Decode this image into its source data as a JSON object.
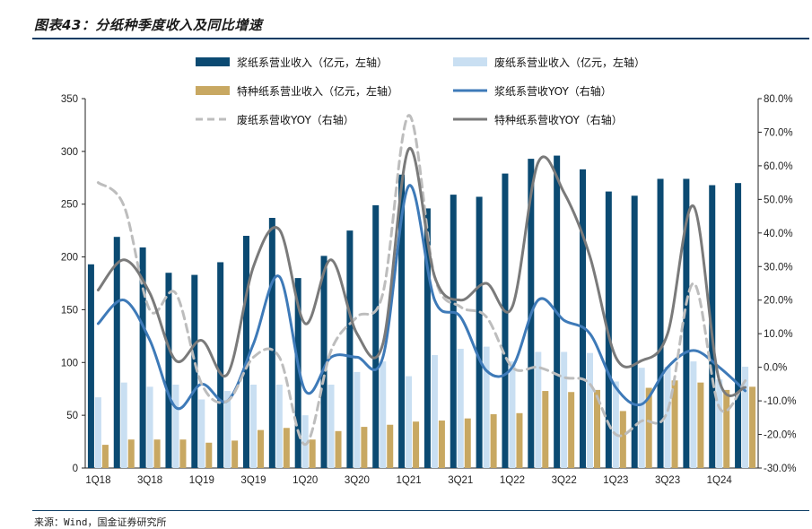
{
  "title": "图表43：分纸种季度收入及同比增速",
  "source": "来源：Wind，国金证券研究所",
  "colors": {
    "pulp_bar": "#0b4a72",
    "waste_bar": "#c9dff2",
    "special_bar": "#c8a862",
    "pulp_yoy": "#3e7ab8",
    "waste_yoy": "#bdbdbd",
    "special_yoy": "#7a7a7a"
  },
  "chart_data": {
    "type": "bar",
    "categories": [
      "1Q18",
      "2Q18",
      "3Q18",
      "4Q18",
      "1Q19",
      "2Q19",
      "3Q19",
      "4Q19",
      "1Q20",
      "2Q20",
      "3Q20",
      "4Q20",
      "1Q21",
      "2Q21",
      "3Q21",
      "4Q21",
      "1Q22",
      "2Q22",
      "3Q22",
      "4Q22",
      "1Q23",
      "2Q23",
      "3Q23",
      "4Q23",
      "1Q24",
      "2Q24"
    ],
    "x_tick_labels": [
      "1Q18",
      "",
      "3Q18",
      "",
      "1Q19",
      "",
      "3Q19",
      "",
      "1Q20",
      "",
      "3Q20",
      "",
      "1Q21",
      "",
      "3Q21",
      "",
      "1Q22",
      "",
      "3Q22",
      "",
      "1Q23",
      "",
      "3Q23",
      "",
      "1Q24",
      ""
    ],
    "y_left": {
      "ylim": [
        0,
        350
      ],
      "ticks": [
        0,
        50,
        100,
        150,
        200,
        250,
        300,
        350
      ]
    },
    "y_right": {
      "ylim": [
        -30,
        80
      ],
      "ticks": [
        "-30.0%",
        "-20.0%",
        "-10.0%",
        "0.0%",
        "10.0%",
        "20.0%",
        "30.0%",
        "40.0%",
        "50.0%",
        "60.0%",
        "70.0%",
        "80.0%"
      ],
      "tick_values": [
        -30,
        -20,
        -10,
        0,
        10,
        20,
        30,
        40,
        50,
        60,
        70,
        80
      ]
    },
    "legend_placement": "top",
    "series": [
      {
        "name": "浆纸系营业收入（亿元，左轴）",
        "type": "bar",
        "axis": "left",
        "values": [
          193,
          219,
          209,
          185,
          183,
          195,
          220,
          237,
          180,
          201,
          225,
          249,
          278,
          246,
          259,
          257,
          279,
          293,
          296,
          283,
          262,
          258,
          274,
          274,
          268,
          270
        ]
      },
      {
        "name": "废纸系营业收入（亿元，左轴）",
        "type": "bar",
        "axis": "left",
        "values": [
          67,
          81,
          77,
          79,
          65,
          73,
          79,
          79,
          50,
          79,
          91,
          101,
          87,
          107,
          113,
          115,
          101,
          110,
          110,
          109,
          82,
          95,
          96,
          101,
          84,
          96
        ]
      },
      {
        "name": "特种纸系营业收入（亿元，左轴）",
        "type": "bar",
        "axis": "left",
        "values": [
          22,
          27,
          27,
          27,
          24,
          26,
          36,
          38,
          27,
          35,
          39,
          41,
          44,
          45,
          47,
          51,
          52,
          73,
          72,
          74,
          54,
          76,
          83,
          81,
          74,
          77
        ]
      },
      {
        "name": "浆纸系营收YOY（右轴）",
        "type": "line",
        "axis": "right",
        "values": [
          13,
          20,
          8,
          -12,
          -5,
          -10,
          7,
          27,
          -7,
          3,
          3,
          3,
          54,
          20,
          15,
          -1,
          0,
          20,
          14,
          10,
          -6,
          -11,
          0,
          5,
          0,
          -7
        ]
      },
      {
        "name": "废纸系营收YOY（右轴）",
        "type": "line",
        "axis": "right",
        "values": [
          55,
          48,
          17,
          22,
          -5,
          -10,
          3,
          3,
          -23,
          5,
          15,
          22,
          75,
          27,
          18,
          15,
          0,
          0,
          -3,
          -5,
          -20,
          -16,
          -13,
          25,
          -12,
          -4
        ]
      },
      {
        "name": "特种纸系营收YOY（右轴）",
        "type": "line",
        "axis": "right",
        "values": [
          23,
          32,
          22,
          2,
          8,
          -2,
          30,
          41,
          13,
          32,
          10,
          7,
          65,
          27,
          20,
          25,
          18,
          61,
          52,
          33,
          3,
          2,
          10,
          48,
          -4,
          -6
        ]
      }
    ]
  }
}
